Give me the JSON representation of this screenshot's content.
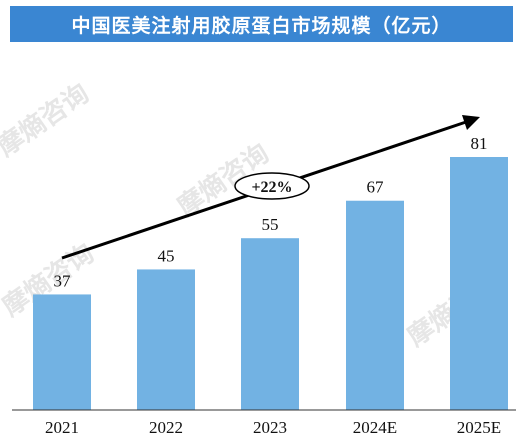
{
  "header": {
    "title": "中国医美注射用胶原蛋白市场规模（亿元）"
  },
  "watermarks": [
    "摩熵咨询",
    "摩熵咨询",
    "摩熵咨询",
    "摩熵咨询"
  ],
  "annotation": {
    "growth": "+22%"
  },
  "colors": {
    "header": "#3a86d2",
    "bar": "#72b2e3",
    "axis": "#333333",
    "arrow": "#000000"
  },
  "chart_data": {
    "type": "bar",
    "categories": [
      "2021",
      "2022",
      "2023",
      "2024E",
      "2025E"
    ],
    "values": [
      37,
      45,
      55,
      67,
      81
    ],
    "title": "中国医美注射用胶原蛋白市场规模（亿元）",
    "xlabel": "",
    "ylabel": "",
    "ylim": [
      0,
      81
    ],
    "grid": false,
    "legend": "none"
  }
}
